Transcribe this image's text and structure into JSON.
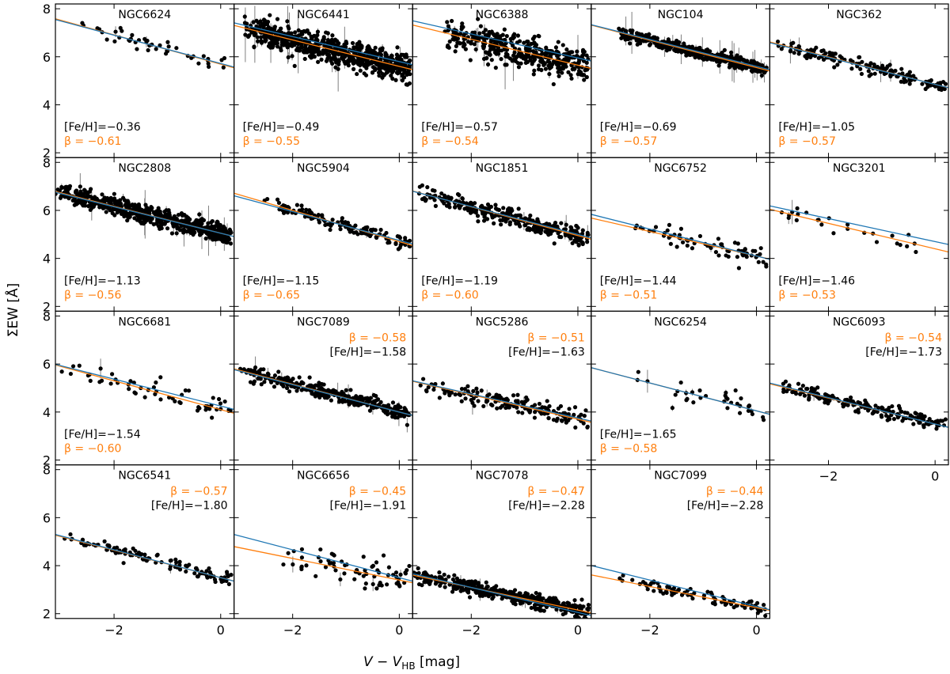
{
  "figure": {
    "xlabel_main": "V − V",
    "xlabel_sub": "HB",
    "xlabel_unit": " [mag]",
    "ylabel": "ΣEW [Å]",
    "colors": {
      "fit_orange": "#ff7f0e",
      "fit_blue": "#1f77b4",
      "points": "#000000",
      "errorbar": "#808080"
    }
  },
  "chart_data": [
    {
      "type": "scatter",
      "title": "NGC6624",
      "feh_text": "[Fe/H]=−0.36",
      "beta_text": "β = −0.61",
      "label_pos": "bottom-left",
      "xlim": [
        -3.1,
        0.25
      ],
      "ylim": [
        1.8,
        8.2
      ],
      "xticks": [
        -2,
        0
      ],
      "yticks": [
        2,
        4,
        6,
        8
      ],
      "show_x_ticklabels": false,
      "show_y_ticklabels": true,
      "n_points": 45,
      "x_range": [
        -2.6,
        0.15
      ],
      "scatter": 0.15,
      "err_scale": 0.3,
      "fit_orange": {
        "slope": -0.61,
        "intercept": 5.69
      },
      "fit_blue": {
        "slope": -0.59,
        "intercept": 5.72
      }
    },
    {
      "type": "scatter",
      "title": "NGC6441",
      "feh_text": "[Fe/H]=−0.49",
      "beta_text": "β = −0.55",
      "label_pos": "bottom-left",
      "xlim": [
        -3.1,
        0.25
      ],
      "ylim": [
        1.8,
        8.2
      ],
      "xticks": [
        -2,
        0
      ],
      "yticks": [
        2,
        4,
        6,
        8
      ],
      "show_x_ticklabels": false,
      "show_y_ticklabels": false,
      "n_points": 700,
      "x_range": [
        -2.9,
        0.2
      ],
      "scatter": 0.3,
      "err_scale": 1.0,
      "fit_orange": {
        "slope": -0.55,
        "intercept": 5.6
      },
      "fit_blue": {
        "slope": -0.52,
        "intercept": 5.8
      }
    },
    {
      "type": "scatter",
      "title": "NGC6388",
      "feh_text": "[Fe/H]=−0.57",
      "beta_text": "β = −0.54",
      "label_pos": "bottom-left",
      "xlim": [
        -3.1,
        0.25
      ],
      "ylim": [
        1.8,
        8.2
      ],
      "xticks": [
        -2,
        0
      ],
      "yticks": [
        2,
        4,
        6,
        8
      ],
      "show_x_ticklabels": false,
      "show_y_ticklabels": false,
      "n_points": 400,
      "x_range": [
        -2.5,
        0.2
      ],
      "scatter": 0.35,
      "err_scale": 0.8,
      "fit_orange": {
        "slope": -0.54,
        "intercept": 5.65
      },
      "fit_blue": {
        "slope": -0.5,
        "intercept": 5.95
      }
    },
    {
      "type": "scatter",
      "title": "NGC104",
      "feh_text": "[Fe/H]=−0.69",
      "beta_text": "β = −0.57",
      "label_pos": "bottom-left",
      "xlim": [
        -3.1,
        0.25
      ],
      "ylim": [
        1.8,
        8.2
      ],
      "xticks": [
        -2,
        0
      ],
      "yticks": [
        2,
        4,
        6,
        8
      ],
      "show_x_ticklabels": false,
      "show_y_ticklabels": false,
      "n_points": 450,
      "x_range": [
        -2.6,
        0.2
      ],
      "scatter": 0.12,
      "err_scale": 0.7,
      "fit_orange": {
        "slope": -0.57,
        "intercept": 5.55
      },
      "fit_blue": {
        "slope": -0.56,
        "intercept": 5.6
      }
    },
    {
      "type": "scatter",
      "title": "NGC362",
      "feh_text": "[Fe/H]=−1.05",
      "beta_text": "β = −0.57",
      "label_pos": "bottom-left",
      "xlim": [
        -3.1,
        0.25
      ],
      "ylim": [
        1.8,
        8.2
      ],
      "xticks": [
        -2,
        0
      ],
      "yticks": [
        2,
        4,
        6,
        8
      ],
      "show_x_ticklabels": false,
      "show_y_ticklabels": false,
      "n_points": 160,
      "x_range": [
        -3.0,
        0.2
      ],
      "scatter": 0.15,
      "err_scale": 0.4,
      "fit_orange": {
        "slope": -0.57,
        "intercept": 4.85
      },
      "fit_blue": {
        "slope": -0.56,
        "intercept": 4.85
      }
    },
    {
      "type": "scatter",
      "title": "NGC2808",
      "feh_text": "[Fe/H]=−1.13",
      "beta_text": "β = −0.56",
      "label_pos": "bottom-left",
      "xlim": [
        -3.1,
        0.25
      ],
      "ylim": [
        1.8,
        8.2
      ],
      "xticks": [
        -2,
        0
      ],
      "yticks": [
        2,
        4,
        6,
        8
      ],
      "show_x_ticklabels": false,
      "show_y_ticklabels": true,
      "n_points": 600,
      "x_range": [
        -3.1,
        0.2
      ],
      "scatter": 0.2,
      "err_scale": 0.9,
      "fit_orange": {
        "slope": -0.56,
        "intercept": 5.05
      },
      "fit_blue": {
        "slope": -0.55,
        "intercept": 5.05
      }
    },
    {
      "type": "scatter",
      "title": "NGC5904",
      "feh_text": "[Fe/H]=−1.15",
      "beta_text": "β = −0.65",
      "label_pos": "bottom-left",
      "xlim": [
        -3.1,
        0.25
      ],
      "ylim": [
        1.8,
        8.2
      ],
      "xticks": [
        -2,
        0
      ],
      "yticks": [
        2,
        4,
        6,
        8
      ],
      "show_x_ticklabels": false,
      "show_y_ticklabels": false,
      "n_points": 130,
      "x_range": [
        -2.6,
        0.2
      ],
      "scatter": 0.15,
      "err_scale": 0.3,
      "fit_orange": {
        "slope": -0.65,
        "intercept": 4.7
      },
      "fit_blue": {
        "slope": -0.6,
        "intercept": 4.75
      }
    },
    {
      "type": "scatter",
      "title": "NGC1851",
      "feh_text": "[Fe/H]=−1.19",
      "beta_text": "β = −0.60",
      "label_pos": "bottom-left",
      "xlim": [
        -3.1,
        0.25
      ],
      "ylim": [
        1.8,
        8.2
      ],
      "xticks": [
        -2,
        0
      ],
      "yticks": [
        2,
        4,
        6,
        8
      ],
      "show_x_ticklabels": false,
      "show_y_ticklabels": false,
      "n_points": 300,
      "x_range": [
        -3.0,
        0.2
      ],
      "scatter": 0.18,
      "err_scale": 0.4,
      "fit_orange": {
        "slope": -0.6,
        "intercept": 4.95
      },
      "fit_blue": {
        "slope": -0.58,
        "intercept": 5.0
      }
    },
    {
      "type": "scatter",
      "title": "NGC6752",
      "feh_text": "[Fe/H]=−1.44",
      "beta_text": "β = −0.51",
      "label_pos": "bottom-left",
      "xlim": [
        -3.1,
        0.25
      ],
      "ylim": [
        1.8,
        8.2
      ],
      "xticks": [
        -2,
        0
      ],
      "yticks": [
        2,
        4,
        6,
        8
      ],
      "show_x_ticklabels": false,
      "show_y_ticklabels": false,
      "n_points": 70,
      "x_range": [
        -2.3,
        0.2
      ],
      "scatter": 0.2,
      "err_scale": 0.3,
      "fit_orange": {
        "slope": -0.51,
        "intercept": 4.1
      },
      "fit_blue": {
        "slope": -0.56,
        "intercept": 4.1
      }
    },
    {
      "type": "scatter",
      "title": "NGC3201",
      "feh_text": "[Fe/H]=−1.46",
      "beta_text": "β = −0.53",
      "label_pos": "bottom-left",
      "xlim": [
        -3.1,
        0.25
      ],
      "ylim": [
        1.8,
        8.2
      ],
      "xticks": [
        -2,
        0
      ],
      "yticks": [
        2,
        4,
        6,
        8
      ],
      "show_x_ticklabels": false,
      "show_y_ticklabels": false,
      "n_points": 25,
      "x_range": [
        -3.0,
        -0.3
      ],
      "scatter": 0.18,
      "err_scale": 0.5,
      "fit_orange": {
        "slope": -0.53,
        "intercept": 4.4
      },
      "fit_blue": {
        "slope": -0.48,
        "intercept": 4.7
      }
    },
    {
      "type": "scatter",
      "title": "NGC6681",
      "feh_text": "[Fe/H]=−1.54",
      "beta_text": "β = −0.60",
      "label_pos": "bottom-left",
      "xlim": [
        -3.1,
        0.25
      ],
      "ylim": [
        1.8,
        8.2
      ],
      "xticks": [
        -2,
        0
      ],
      "yticks": [
        2,
        4,
        6,
        8
      ],
      "show_x_ticklabels": false,
      "show_y_ticklabels": true,
      "n_points": 55,
      "x_range": [
        -3.0,
        0.2
      ],
      "scatter": 0.25,
      "err_scale": 0.3,
      "fit_orange": {
        "slope": -0.6,
        "intercept": 4.1
      },
      "fit_blue": {
        "slope": -0.56,
        "intercept": 4.25
      }
    },
    {
      "type": "scatter",
      "title": "NGC7089",
      "feh_text": "[Fe/H]=−1.58",
      "beta_text": "β = −0.58",
      "label_pos": "top-right",
      "xlim": [
        -3.1,
        0.25
      ],
      "ylim": [
        1.8,
        8.2
      ],
      "xticks": [
        -2,
        0
      ],
      "yticks": [
        2,
        4,
        6,
        8
      ],
      "show_x_ticklabels": false,
      "show_y_ticklabels": false,
      "n_points": 350,
      "x_range": [
        -3.0,
        0.2
      ],
      "scatter": 0.15,
      "err_scale": 0.4,
      "fit_orange": {
        "slope": -0.58,
        "intercept": 4.0
      },
      "fit_blue": {
        "slope": -0.57,
        "intercept": 4.0
      }
    },
    {
      "type": "scatter",
      "title": "NGC5286",
      "feh_text": "[Fe/H]=−1.63",
      "beta_text": "β = −0.51",
      "label_pos": "top-right",
      "xlim": [
        -3.1,
        0.25
      ],
      "ylim": [
        1.8,
        8.2
      ],
      "xticks": [
        -2,
        0
      ],
      "yticks": [
        2,
        4,
        6,
        8
      ],
      "show_x_ticklabels": false,
      "show_y_ticklabels": false,
      "n_points": 170,
      "x_range": [
        -3.0,
        0.2
      ],
      "scatter": 0.2,
      "err_scale": 0.5,
      "fit_orange": {
        "slope": -0.51,
        "intercept": 3.7
      },
      "fit_blue": {
        "slope": -0.5,
        "intercept": 3.75
      }
    },
    {
      "type": "scatter",
      "title": "NGC6254",
      "feh_text": "[Fe/H]=−1.65",
      "beta_text": "β = −0.58",
      "label_pos": "bottom-left",
      "xlim": [
        -3.1,
        0.25
      ],
      "ylim": [
        1.8,
        8.2
      ],
      "xticks": [
        -2,
        0
      ],
      "yticks": [
        2,
        4,
        6,
        8
      ],
      "show_x_ticklabels": false,
      "show_y_ticklabels": false,
      "n_points": 35,
      "x_range": [
        -2.4,
        0.2
      ],
      "scatter": 0.2,
      "err_scale": 0.8,
      "fit_orange": {
        "slope": -0.58,
        "intercept": 4.05
      },
      "fit_blue": {
        "slope": -0.58,
        "intercept": 4.05
      }
    },
    {
      "type": "scatter",
      "title": "NGC6093",
      "feh_text": "[Fe/H]=−1.73",
      "beta_text": "β = −0.54",
      "label_pos": "top-right",
      "xlim": [
        -3.1,
        0.25
      ],
      "ylim": [
        1.8,
        8.2
      ],
      "xticks": [
        -2,
        0
      ],
      "yticks": [
        2,
        4,
        6,
        8
      ],
      "show_x_ticklabels": true,
      "show_y_ticklabels": false,
      "n_points": 180,
      "x_range": [
        -2.9,
        0.2
      ],
      "scatter": 0.15,
      "err_scale": 0.4,
      "fit_orange": {
        "slope": -0.54,
        "intercept": 3.5
      },
      "fit_blue": {
        "slope": -0.55,
        "intercept": 3.5
      }
    },
    {
      "type": "scatter",
      "title": "NGC6541",
      "feh_text": "[Fe/H]=−1.80",
      "beta_text": "β = −0.57",
      "label_pos": "top-right",
      "xlim": [
        -3.1,
        0.25
      ],
      "ylim": [
        1.8,
        8.2
      ],
      "xticks": [
        -2,
        0
      ],
      "yticks": [
        2,
        4,
        6,
        8
      ],
      "show_x_ticklabels": true,
      "show_y_ticklabels": true,
      "n_points": 110,
      "x_range": [
        -3.0,
        0.2
      ],
      "scatter": 0.12,
      "err_scale": 0.3,
      "fit_orange": {
        "slope": -0.57,
        "intercept": 3.5
      },
      "fit_blue": {
        "slope": -0.58,
        "intercept": 3.5
      }
    },
    {
      "type": "scatter",
      "title": "NGC6656",
      "feh_text": "[Fe/H]=−1.91",
      "beta_text": "β = −0.45",
      "label_pos": "top-right",
      "xlim": [
        -3.1,
        0.25
      ],
      "ylim": [
        1.8,
        8.2
      ],
      "xticks": [
        -2,
        0
      ],
      "yticks": [
        2,
        4,
        6,
        8
      ],
      "show_x_ticklabels": true,
      "show_y_ticklabels": false,
      "n_points": 70,
      "x_range": [
        -2.5,
        0.2
      ],
      "scatter": 0.35,
      "err_scale": 0.3,
      "fit_orange": {
        "slope": -0.45,
        "intercept": 3.4
      },
      "fit_blue": {
        "slope": -0.58,
        "intercept": 3.5
      }
    },
    {
      "type": "scatter",
      "title": "NGC7078",
      "feh_text": "[Fe/H]=−2.28",
      "beta_text": "β = −0.47",
      "label_pos": "top-right",
      "xlim": [
        -3.1,
        0.25
      ],
      "ylim": [
        1.8,
        8.2
      ],
      "xticks": [
        -2,
        0
      ],
      "yticks": [
        2,
        4,
        6,
        8
      ],
      "show_x_ticklabels": true,
      "show_y_ticklabels": false,
      "n_points": 420,
      "x_range": [
        -3.1,
        0.2
      ],
      "scatter": 0.15,
      "err_scale": 0.4,
      "fit_orange": {
        "slope": -0.47,
        "intercept": 2.15
      },
      "fit_blue": {
        "slope": -0.52,
        "intercept": 2.05
      }
    },
    {
      "type": "scatter",
      "title": "NGC7099",
      "feh_text": "[Fe/H]=−2.28",
      "beta_text": "β = −0.44",
      "label_pos": "top-right",
      "xlim": [
        -3.1,
        0.25
      ],
      "ylim": [
        1.8,
        8.2
      ],
      "xticks": [
        -2,
        0
      ],
      "yticks": [
        2,
        4,
        6,
        8
      ],
      "show_x_ticklabels": true,
      "show_y_ticklabels": false,
      "n_points": 90,
      "x_range": [
        -2.6,
        0.2
      ],
      "scatter": 0.12,
      "err_scale": 0.3,
      "fit_orange": {
        "slope": -0.44,
        "intercept": 2.25
      },
      "fit_blue": {
        "slope": -0.55,
        "intercept": 2.3
      }
    }
  ]
}
